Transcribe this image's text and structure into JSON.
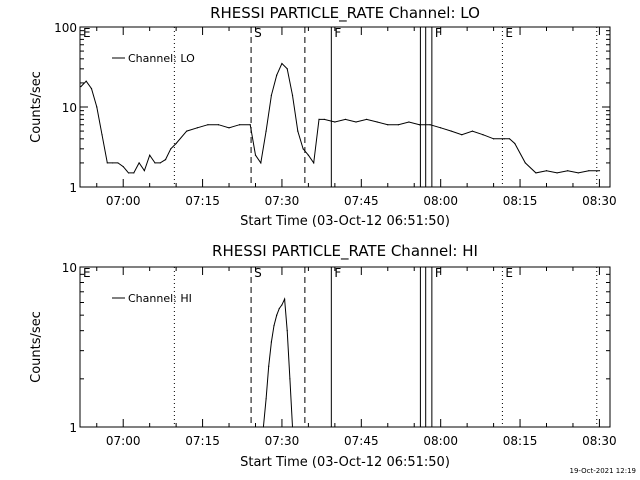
{
  "footer": {
    "timestamp": "19-Oct-2021 12:19"
  },
  "chart_data": [
    {
      "type": "line",
      "title": "RHESSI PARTICLE_RATE Channel: LO",
      "xlabel": "Start Time (03-Oct-12 06:51:50)",
      "ylabel": "Counts/sec",
      "yscale": "log",
      "ylim": [
        1,
        100
      ],
      "xlim": [
        "06:51:50",
        "08:32:00"
      ],
      "y_ticks": [
        "1",
        "10",
        "100"
      ],
      "x_ticks": [
        "07:00",
        "07:15",
        "07:30",
        "07:45",
        "08:00",
        "08:15",
        "08:30"
      ],
      "grid": false,
      "legend": {
        "position": "top-left",
        "entries": [
          "Channel: LO"
        ]
      },
      "series": [
        {
          "name": "Channel: LO",
          "x": [
            "06:52",
            "06:53",
            "06:54",
            "06:55",
            "06:56",
            "06:57",
            "06:58",
            "06:59",
            "07:00",
            "07:01",
            "07:02",
            "07:03",
            "07:04",
            "07:05",
            "07:06",
            "07:07",
            "07:08",
            "07:09",
            "07:10",
            "07:12",
            "07:14",
            "07:16",
            "07:18",
            "07:20",
            "07:22",
            "07:24",
            "07:25",
            "07:26",
            "07:27",
            "07:28",
            "07:29",
            "07:30",
            "07:31",
            "07:32",
            "07:33",
            "07:34",
            "07:35",
            "07:36",
            "07:37",
            "07:38",
            "07:40",
            "07:42",
            "07:44",
            "07:46",
            "07:48",
            "07:50",
            "07:52",
            "07:54",
            "07:56",
            "07:58",
            "08:00",
            "08:02",
            "08:04",
            "08:06",
            "08:08",
            "08:10",
            "08:12",
            "08:13",
            "08:14",
            "08:16",
            "08:18",
            "08:20",
            "08:22",
            "08:24",
            "08:26",
            "08:28",
            "08:30"
          ],
          "values": [
            18,
            21,
            17,
            10,
            4.5,
            2,
            2,
            2,
            1.8,
            1.5,
            1.5,
            2,
            1.6,
            2.5,
            2,
            2,
            2.2,
            3,
            3.5,
            5,
            5.5,
            6,
            6,
            5.5,
            6,
            6,
            2.5,
            2,
            5,
            14,
            25,
            35,
            30,
            14,
            5,
            3,
            2.5,
            2,
            7,
            7,
            6.5,
            7,
            6.5,
            7,
            6.5,
            6,
            6,
            6.5,
            6,
            6,
            5.5,
            5,
            4.5,
            5,
            4.5,
            4,
            4,
            4,
            3.5,
            2,
            1.5,
            1.6,
            1.5,
            1.6,
            1.5,
            1.6,
            1.6
          ]
        }
      ],
      "flags": [
        {
          "label": "E",
          "time": "06:51:50",
          "style": "dotted",
          "line": false
        },
        {
          "label": "",
          "time": "07:09:40",
          "style": "dotted",
          "line": true
        },
        {
          "label": "S",
          "time": "07:24:10",
          "style": "dashed",
          "line": true
        },
        {
          "label": "",
          "time": "07:34:20",
          "style": "dashed",
          "line": true
        },
        {
          "label": "F",
          "time": "07:39:20",
          "style": "solid",
          "line": true
        },
        {
          "label": "",
          "time": "07:56:10",
          "style": "solid",
          "line": true
        },
        {
          "label": "F",
          "time": "07:58:20",
          "style": "solid",
          "line": true
        },
        {
          "label": "",
          "time": "07:57:10",
          "style": "solid",
          "line": true
        },
        {
          "label": "E",
          "time": "08:11:40",
          "style": "dotted",
          "line": true
        },
        {
          "label": "",
          "time": "08:29:30",
          "style": "dotted",
          "line": true
        }
      ]
    },
    {
      "type": "line",
      "title": "RHESSI PARTICLE_RATE Channel: HI",
      "xlabel": "Start Time (03-Oct-12 06:51:50)",
      "ylabel": "Counts/sec",
      "yscale": "log",
      "ylim": [
        1,
        10
      ],
      "xlim": [
        "06:51:50",
        "08:32:00"
      ],
      "y_ticks": [
        "1",
        "10"
      ],
      "x_ticks": [
        "07:00",
        "07:15",
        "07:30",
        "07:45",
        "08:00",
        "08:15",
        "08:30"
      ],
      "grid": false,
      "legend": {
        "position": "top-left",
        "entries": [
          "Channel: HI"
        ]
      },
      "series": [
        {
          "name": "Channel: HI",
          "x": [
            "07:26:30",
            "07:27",
            "07:27:30",
            "07:28",
            "07:28:30",
            "07:29",
            "07:29:30",
            "07:30",
            "07:30:30",
            "07:31",
            "07:31:30",
            "07:32"
          ],
          "values": [
            1,
            1.5,
            2.4,
            3.4,
            4.3,
            5,
            5.5,
            5.8,
            6.3,
            4,
            2,
            1
          ]
        }
      ],
      "flags": [
        {
          "label": "E",
          "time": "06:51:50",
          "style": "dotted",
          "line": false
        },
        {
          "label": "",
          "time": "07:09:40",
          "style": "dotted",
          "line": true
        },
        {
          "label": "S",
          "time": "07:24:10",
          "style": "dashed",
          "line": true
        },
        {
          "label": "",
          "time": "07:34:20",
          "style": "dashed",
          "line": true
        },
        {
          "label": "F",
          "time": "07:39:20",
          "style": "solid",
          "line": true
        },
        {
          "label": "",
          "time": "07:56:10",
          "style": "solid",
          "line": true
        },
        {
          "label": "F",
          "time": "07:58:20",
          "style": "solid",
          "line": true
        },
        {
          "label": "",
          "time": "07:57:10",
          "style": "solid",
          "line": true
        },
        {
          "label": "E",
          "time": "08:11:40",
          "style": "dotted",
          "line": true
        },
        {
          "label": "",
          "time": "08:29:30",
          "style": "dotted",
          "line": true
        }
      ]
    }
  ]
}
